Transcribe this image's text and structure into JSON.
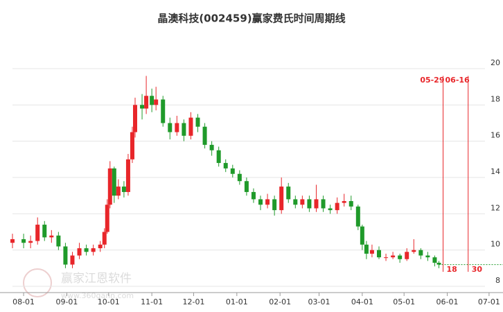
{
  "chart_data": {
    "type": "candlestick",
    "title": "晶澳科技(002459)赢家费氏时间周期线",
    "watermark": "赢家江恩软件",
    "watermark_url": "www.360gann.com",
    "x": [
      -8,
      0,
      5,
      10,
      15,
      20,
      25,
      30,
      35,
      40,
      45,
      50,
      55,
      58,
      60,
      62,
      65,
      68,
      72,
      75,
      78,
      80,
      85,
      88,
      92,
      95,
      100,
      105,
      110,
      115,
      120,
      125,
      130,
      135,
      140,
      145,
      150,
      155,
      160,
      165,
      170,
      175,
      180,
      185,
      190,
      195,
      200,
      205,
      210,
      215,
      220,
      225,
      230,
      235,
      240,
      243,
      246,
      250,
      255,
      260,
      265,
      270,
      275,
      280,
      285,
      290,
      295,
      298
    ],
    "open": [
      10.4,
      10.6,
      10.4,
      10.5,
      11.4,
      10.7,
      10.8,
      10.2,
      9.2,
      9.7,
      10.1,
      9.9,
      10.1,
      10.3,
      11.0,
      12.5,
      14.5,
      13.0,
      13.5,
      13.2,
      15.0,
      16.5,
      18.0,
      17.8,
      18.5,
      18.0,
      18.3,
      17.0,
      16.5,
      17.0,
      16.3,
      17.3,
      16.8,
      15.8,
      15.5,
      14.8,
      14.5,
      14.2,
      13.8,
      13.2,
      12.8,
      12.5,
      12.8,
      12.2,
      13.5,
      12.8,
      12.5,
      12.8,
      12.3,
      12.8,
      12.3,
      12.2,
      12.6,
      12.7,
      12.4,
      11.3,
      10.3,
      9.8,
      10.0,
      9.6,
      9.6,
      9.7,
      9.5,
      9.9,
      10.0,
      9.7,
      9.6,
      9.3
    ],
    "high": [
      10.9,
      10.9,
      10.8,
      11.8,
      11.6,
      11.1,
      11.0,
      10.4,
      9.9,
      10.4,
      10.3,
      10.3,
      10.5,
      11.2,
      12.8,
      14.9,
      14.6,
      13.9,
      13.8,
      15.3,
      16.8,
      18.4,
      18.6,
      19.6,
      18.9,
      19.0,
      18.5,
      17.3,
      17.4,
      17.2,
      17.6,
      17.5,
      17.0,
      16.0,
      15.7,
      15.0,
      14.7,
      14.4,
      14.0,
      13.4,
      13.0,
      13.1,
      13.0,
      14.0,
      13.7,
      13.0,
      13.0,
      13.0,
      13.6,
      13.0,
      12.5,
      12.9,
      13.1,
      13.0,
      12.5,
      11.4,
      10.5,
      10.3,
      10.2,
      9.8,
      9.9,
      9.8,
      10.1,
      10.6,
      10.1,
      9.9,
      9.7,
      9.4
    ],
    "low": [
      10.1,
      10.1,
      10.1,
      10.3,
      10.5,
      10.4,
      10.0,
      9.0,
      9.0,
      9.5,
      9.7,
      9.7,
      9.9,
      10.1,
      10.9,
      12.3,
      12.6,
      12.8,
      12.9,
      13.0,
      14.8,
      16.2,
      17.2,
      17.5,
      17.6,
      17.7,
      16.8,
      16.1,
      16.3,
      16.0,
      16.1,
      16.5,
      15.6,
      15.2,
      14.6,
      14.3,
      14.0,
      13.6,
      13.0,
      12.6,
      12.2,
      12.3,
      11.9,
      12.0,
      12.6,
      12.3,
      12.3,
      12.1,
      12.1,
      12.1,
      12.0,
      12.0,
      12.4,
      12.2,
      11.1,
      10.0,
      9.5,
      9.6,
      9.5,
      9.4,
      9.5,
      9.3,
      9.4,
      9.8,
      9.5,
      9.4,
      9.1,
      9.0
    ],
    "close": [
      10.6,
      10.4,
      10.5,
      11.4,
      10.7,
      10.8,
      10.2,
      9.2,
      9.7,
      10.1,
      9.9,
      10.1,
      10.3,
      11.0,
      12.5,
      14.5,
      13.0,
      13.5,
      13.2,
      15.0,
      16.5,
      18.0,
      17.8,
      18.5,
      18.0,
      18.3,
      17.0,
      16.5,
      17.0,
      16.3,
      17.3,
      16.8,
      15.8,
      15.5,
      14.8,
      14.5,
      14.2,
      13.8,
      13.2,
      12.8,
      12.5,
      12.8,
      12.2,
      13.5,
      12.8,
      12.5,
      12.8,
      12.3,
      12.8,
      12.3,
      12.2,
      12.6,
      12.7,
      12.4,
      11.3,
      10.3,
      9.8,
      10.0,
      9.6,
      9.6,
      9.7,
      9.5,
      9.9,
      10.0,
      9.7,
      9.6,
      9.3,
      9.2
    ],
    "up_color": "#e8262a",
    "down_color": "#1f9a2a",
    "xlim": [
      -8,
      344
    ],
    "xticks": [
      {
        "value": 0,
        "label": "08-01"
      },
      {
        "value": 31,
        "label": "09-01"
      },
      {
        "value": 61,
        "label": "10-01"
      },
      {
        "value": 92,
        "label": "11-01"
      },
      {
        "value": 122,
        "label": "12-01"
      },
      {
        "value": 153,
        "label": "01-01"
      },
      {
        "value": 184,
        "label": "02-01"
      },
      {
        "value": 212,
        "label": "03-01"
      },
      {
        "value": 243,
        "label": "04-01"
      },
      {
        "value": 273,
        "label": "05-01"
      },
      {
        "value": 304,
        "label": "06-01"
      },
      {
        "value": 334,
        "label": "07-01"
      }
    ],
    "ylim": [
      8,
      20
    ],
    "yticks": [
      8,
      10,
      12,
      14,
      16,
      18,
      20
    ],
    "grid": true,
    "reference_line": {
      "value": 9.2,
      "color": "#1f9a2a"
    },
    "cycle_lines": [
      {
        "x": 301,
        "label": "05-29",
        "count": 18
      },
      {
        "x": 319,
        "label": "06-16",
        "count": 30
      }
    ],
    "cycle_color": "#e8262a"
  }
}
